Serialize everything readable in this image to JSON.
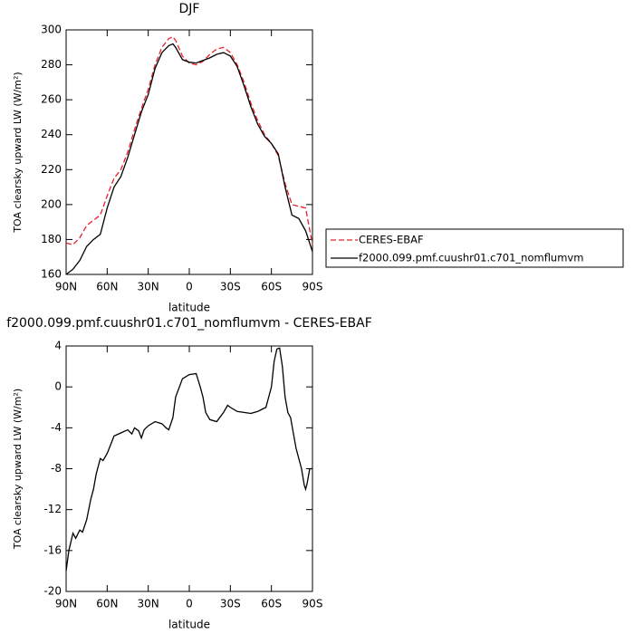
{
  "chart_data": [
    {
      "type": "line",
      "title": "DJF",
      "x_label": "latitude",
      "y_label": "TOA clearsky upward LW (W/m²)",
      "x": [
        90,
        85,
        80,
        75,
        70,
        65,
        60,
        55,
        50,
        45,
        40,
        35,
        30,
        25,
        20,
        15,
        12,
        10,
        5,
        0,
        -5,
        -10,
        -15,
        -20,
        -25,
        -30,
        -35,
        -40,
        -45,
        -50,
        -55,
        -60,
        -65,
        -70,
        -75,
        -80,
        -85,
        -90
      ],
      "series": [
        {
          "name": "CERES-EBAF",
          "color": "#e8202a",
          "linestyle": "dashed",
          "values": [
            178,
            177,
            181,
            188,
            191,
            194,
            205,
            215,
            220,
            230,
            243,
            255,
            266,
            280,
            290,
            295,
            296,
            294,
            285,
            281,
            280,
            282,
            286,
            289,
            290,
            287,
            280,
            270,
            258,
            248,
            240,
            235,
            228,
            212,
            200,
            199,
            198,
            177
          ]
        },
        {
          "name": "f2000.099.pmf.cuushr01.c701_nomflumvm",
          "color": "#000000",
          "linestyle": "solid",
          "values": [
            160,
            163,
            168,
            176,
            180,
            183,
            198,
            210,
            216,
            227,
            240,
            253,
            263,
            278,
            287,
            291,
            292,
            290,
            283,
            281.5,
            281,
            282.5,
            284,
            286,
            287,
            285,
            279,
            268,
            256,
            246,
            239,
            235,
            229,
            210,
            194,
            192,
            185,
            173
          ]
        }
      ],
      "xlim": [
        90,
        -90
      ],
      "xticks": [
        {
          "value": 90,
          "label": "90N"
        },
        {
          "value": 60,
          "label": "60N"
        },
        {
          "value": 30,
          "label": "30N"
        },
        0,
        {
          "value": -30,
          "label": "30S"
        },
        {
          "value": -60,
          "label": "60S"
        },
        {
          "value": -90,
          "label": "90S"
        }
      ],
      "ylim": [
        160,
        300
      ],
      "yticks": [
        160,
        180,
        200,
        220,
        240,
        260,
        280,
        300
      ],
      "legend": "outside-right"
    },
    {
      "type": "line",
      "title": "f2000.099.pmf.cuushr01.c701_nomflumvm - CERES-EBAF",
      "x_label": "latitude",
      "y_label": "TOA clearsky upward LW (W/m²)",
      "x": [
        90,
        88,
        85,
        83,
        80,
        78,
        75,
        72,
        70,
        68,
        65,
        63,
        60,
        57,
        55,
        50,
        45,
        42,
        40,
        37,
        35,
        33,
        30,
        25,
        20,
        17,
        15,
        12,
        10,
        5,
        0,
        -5,
        -8,
        -10,
        -12,
        -15,
        -20,
        -25,
        -28,
        -30,
        -35,
        -40,
        -45,
        -50,
        -53,
        -56,
        -60,
        -62,
        -64,
        -66,
        -68,
        -70,
        -72,
        -74,
        -76,
        -78,
        -82,
        -84,
        -85,
        -86,
        -88,
        -90
      ],
      "series": [
        {
          "name": "f2000.099.pmf.cuushr01.c701_nomflumvm - CERES-EBAF",
          "color": "#000000",
          "values": [
            -18,
            -16,
            -14.3,
            -14.8,
            -14,
            -14.2,
            -13,
            -11,
            -10,
            -8.5,
            -7,
            -7.2,
            -6.5,
            -5.5,
            -4.8,
            -4.5,
            -4.2,
            -4.6,
            -4,
            -4.3,
            -5,
            -4.2,
            -3.8,
            -3.4,
            -3.6,
            -4,
            -4.2,
            -3,
            -1,
            0.8,
            1.2,
            1.3,
            0,
            -1,
            -2.5,
            -3.2,
            -3.4,
            -2.5,
            -1.8,
            -2,
            -2.4,
            -2.5,
            -2.6,
            -2.4,
            -2.2,
            -2,
            0,
            2.5,
            3.7,
            3.8,
            2,
            -1,
            -2.5,
            -3,
            -4.5,
            -6,
            -8,
            -9.6,
            -10,
            -9.5,
            -8,
            -8
          ]
        }
      ],
      "xlim": [
        90,
        -90
      ],
      "xticks": [
        {
          "value": 90,
          "label": "90N"
        },
        {
          "value": 60,
          "label": "60N"
        },
        {
          "value": 30,
          "label": "30N"
        },
        0,
        {
          "value": -30,
          "label": "30S"
        },
        {
          "value": -60,
          "label": "60S"
        },
        {
          "value": -90,
          "label": "90S"
        }
      ],
      "ylim": [
        -20,
        4
      ],
      "yticks": [
        -20,
        -16,
        -12,
        -8,
        -4,
        0,
        4
      ]
    }
  ]
}
